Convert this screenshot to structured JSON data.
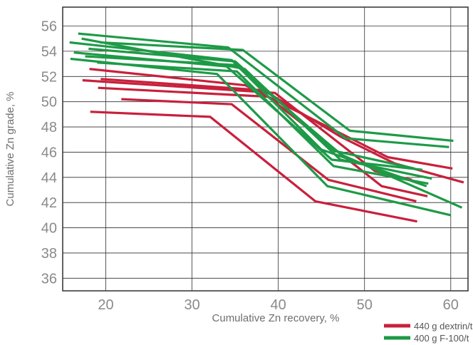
{
  "chart_data": {
    "type": "line",
    "xlabel": "Cumulative Zn recovery, %",
    "ylabel": "Cumulative Zn grade, %",
    "xlim": [
      15,
      62
    ],
    "ylim": [
      35,
      57.5
    ],
    "xticks": [
      "20",
      "30",
      "40",
      "50",
      "60"
    ],
    "yticks": [
      "36",
      "38",
      "40",
      "42",
      "44",
      "46",
      "48",
      "50",
      "52",
      "54",
      "56"
    ],
    "grid": true,
    "legend_position": "bottom-right",
    "series": [
      {
        "name": "440 g dextrin/t",
        "color": "#c8203c",
        "lines": [
          [
            [
              18.2,
              49.2
            ],
            [
              32.1,
              48.8
            ],
            [
              44.3,
              42.1
            ],
            [
              56.1,
              40.5
            ]
          ],
          [
            [
              21.8,
              50.2
            ],
            [
              34.6,
              49.8
            ],
            [
              45.8,
              43.8
            ],
            [
              56.0,
              42.1
            ]
          ],
          [
            [
              19.1,
              51.1
            ],
            [
              38.8,
              50.4
            ],
            [
              52.0,
              43.3
            ],
            [
              57.3,
              42.5
            ]
          ],
          [
            [
              17.3,
              51.7
            ],
            [
              39.6,
              50.7
            ],
            [
              51.2,
              44.5
            ],
            [
              55.5,
              43.8
            ]
          ],
          [
            [
              18.1,
              52.6
            ],
            [
              36.2,
              51.3
            ],
            [
              52.7,
              45.6
            ],
            [
              60.2,
              44.7
            ]
          ],
          [
            [
              19.4,
              51.8
            ],
            [
              38.3,
              50.9
            ],
            [
              47.3,
              47.2
            ],
            [
              53.5,
              45.1
            ],
            [
              61.5,
              43.6
            ]
          ]
        ]
      },
      {
        "name": "400 g F-100/t",
        "color": "#1e9a47",
        "lines": [
          [
            [
              15.9,
              53.4
            ],
            [
              32.9,
              52.2
            ],
            [
              45.7,
              43.3
            ],
            [
              60.0,
              41.0
            ]
          ],
          [
            [
              19.0,
              53.1
            ],
            [
              35.2,
              52.4
            ],
            [
              46.4,
              44.9
            ],
            [
              57.4,
              43.5
            ]
          ],
          [
            [
              16.3,
              53.9
            ],
            [
              34.0,
              52.8
            ],
            [
              46.2,
              45.4
            ],
            [
              56.7,
              44.6
            ]
          ],
          [
            [
              15.8,
              54.7
            ],
            [
              34.6,
              53.3
            ],
            [
              45.0,
              46.2
            ],
            [
              57.2,
              43.3
            ]
          ],
          [
            [
              17.2,
              55.0
            ],
            [
              36.1,
              52.6
            ],
            [
              47.2,
              45.4
            ],
            [
              57.8,
              43.9
            ]
          ],
          [
            [
              18.0,
              54.2
            ],
            [
              35.0,
              53.2
            ],
            [
              46.5,
              46.1
            ],
            [
              55.8,
              44.7
            ]
          ],
          [
            [
              16.8,
              55.4
            ],
            [
              34.2,
              54.3
            ],
            [
              47.8,
              47.1
            ],
            [
              59.8,
              46.4
            ]
          ],
          [
            [
              19.3,
              54.7
            ],
            [
              35.9,
              54.1
            ],
            [
              48.3,
              47.7
            ],
            [
              60.3,
              46.9
            ]
          ],
          [
            [
              17.6,
              53.6
            ],
            [
              35.1,
              52.9
            ],
            [
              47.3,
              45.8
            ],
            [
              61.3,
              41.6
            ]
          ]
        ]
      }
    ]
  }
}
